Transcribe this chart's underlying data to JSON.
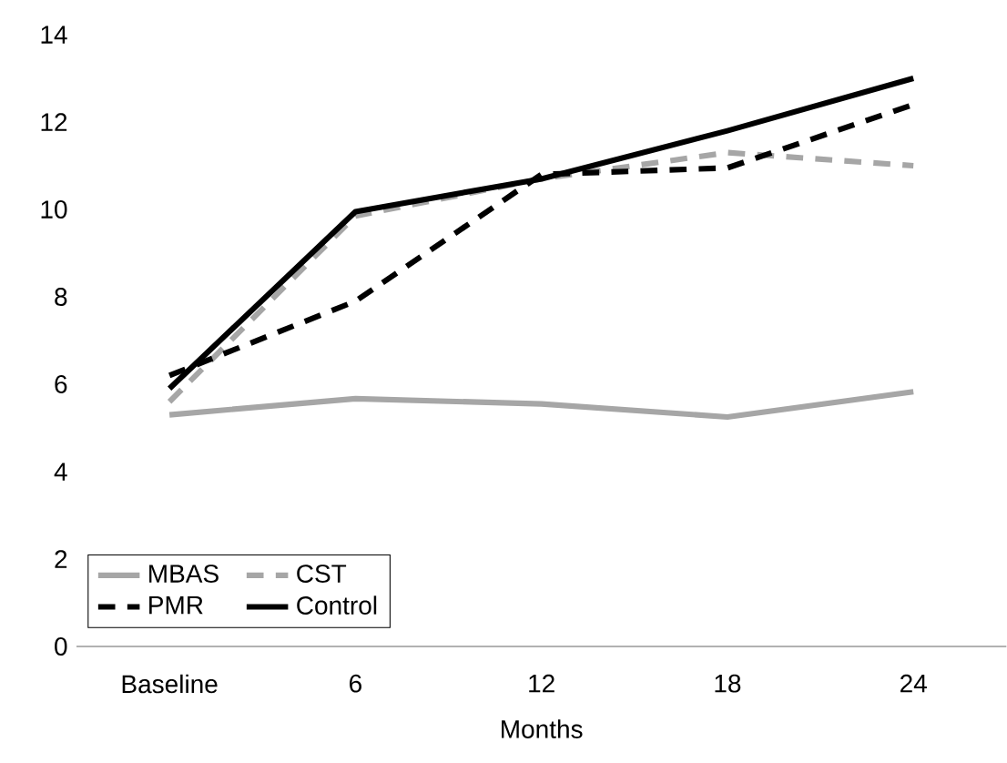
{
  "chart_data": {
    "type": "line",
    "xlabel": "Months",
    "categories": [
      "Baseline",
      "6",
      "12",
      "18",
      "24"
    ],
    "series": [
      {
        "name": "MBAS",
        "color": "#a6a6a6",
        "line_style": "solid",
        "values": [
          5.3,
          5.67,
          5.55,
          5.25,
          5.83
        ]
      },
      {
        "name": "CST",
        "color": "#a6a6a6",
        "line_style": "dashed",
        "values": [
          5.6,
          9.85,
          10.7,
          11.3,
          11.0
        ]
      },
      {
        "name": "PMR",
        "color": "#000000",
        "line_style": "dashed",
        "values": [
          6.2,
          7.9,
          10.8,
          10.95,
          12.4
        ]
      },
      {
        "name": "Control",
        "color": "#000000",
        "line_style": "solid",
        "values": [
          5.9,
          9.95,
          10.7,
          11.8,
          13.0
        ]
      }
    ],
    "ylim": [
      0,
      14
    ],
    "yticks": [
      0,
      2,
      4,
      6,
      8,
      10,
      12,
      14
    ],
    "grid": false,
    "legend": "bottom left",
    "marker": "none"
  }
}
